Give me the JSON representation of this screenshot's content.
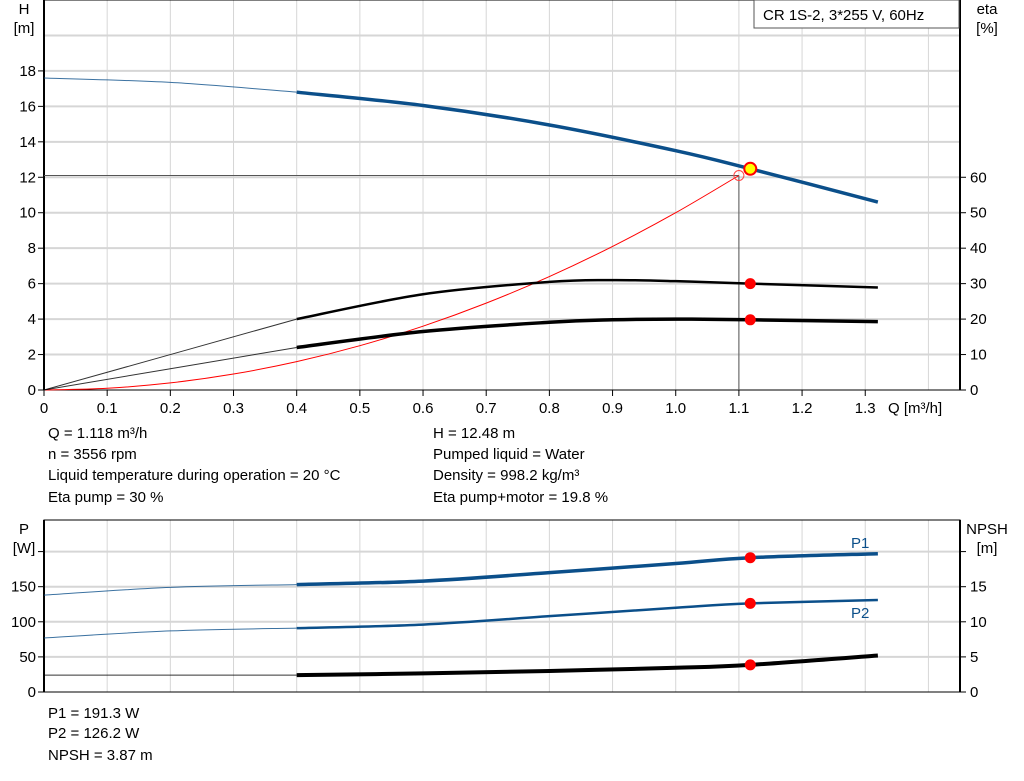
{
  "chart_data": [
    {
      "type": "line",
      "title_box": "CR 1S-2, 3*255 V, 60Hz",
      "xlabel": "Q [m³/h]",
      "xlim": [
        0,
        1.45
      ],
      "xticks": [
        0,
        0.1,
        0.2,
        0.3,
        0.4,
        0.5,
        0.6,
        0.7,
        0.8,
        0.9,
        1.0,
        1.1,
        1.2,
        1.3
      ],
      "ylabel_left": [
        "H",
        "[m]"
      ],
      "ylim_left": [
        0,
        22
      ],
      "yticks_left": [
        0,
        2,
        4,
        6,
        8,
        10,
        12,
        14,
        16,
        18
      ],
      "ylabel_right": [
        "eta",
        "[%]"
      ],
      "ylim_right": [
        0,
        110
      ],
      "yticks_right": [
        0,
        10,
        20,
        30,
        40,
        50,
        60
      ],
      "grid": true,
      "series": [
        {
          "key": "H",
          "axis": "left",
          "color": "#0b4f8a",
          "x": [
            0,
            0.2,
            0.4,
            0.6,
            0.8,
            1.0,
            1.118,
            1.32
          ],
          "y": [
            17.6,
            17.35,
            16.8,
            16.05,
            14.95,
            13.5,
            12.48,
            10.6
          ]
        },
        {
          "key": "eta_pump",
          "axis": "right",
          "color": "#000000",
          "x": [
            0,
            0.4,
            0.6,
            0.8,
            0.9,
            1.0,
            1.118,
            1.32
          ],
          "y": [
            0,
            20,
            27,
            30.5,
            31,
            30.7,
            30,
            28.9
          ]
        },
        {
          "key": "eta_pump_motor",
          "axis": "right",
          "color": "#000000",
          "x": [
            0,
            0.4,
            0.6,
            0.8,
            0.9,
            1.0,
            1.118,
            1.32
          ],
          "y": [
            0,
            12,
            16.5,
            19.1,
            19.8,
            20,
            19.8,
            19.3
          ]
        },
        {
          "key": "system_curve",
          "axis": "left",
          "color": "#ff0000",
          "x": [
            0,
            0.1,
            0.2,
            0.3,
            0.4,
            0.5,
            0.6,
            0.7,
            0.8,
            0.9,
            1.0,
            1.1
          ],
          "y": [
            0,
            0.1,
            0.4,
            0.9,
            1.6,
            2.5,
            3.6,
            4.9,
            6.4,
            8.1,
            10,
            12.1
          ]
        }
      ],
      "duty_point": {
        "Q": 1.118,
        "H": 12.48,
        "eta_pump": 30,
        "eta_pump_motor": 19.8
      },
      "system_point": {
        "Q": 1.1,
        "H": 12.1
      }
    },
    {
      "type": "line",
      "xlim": [
        0,
        1.45
      ],
      "ylabel_left": [
        "P",
        "[W]"
      ],
      "ylim_left": [
        0,
        245
      ],
      "yticks_left": [
        0,
        50,
        100,
        150,
        200
      ],
      "ytick_labels_left": [
        "0",
        "50",
        "100",
        "150",
        ""
      ],
      "ylabel_right": [
        "NPSH",
        "[m]"
      ],
      "ylim_right": [
        0,
        24.5
      ],
      "yticks_right": [
        0,
        5,
        10,
        15,
        20
      ],
      "ytick_labels_right": [
        "0",
        "5",
        "10",
        "15",
        ""
      ],
      "grid": true,
      "series": [
        {
          "name": "P1",
          "axis": "left",
          "color": "#0b4f8a",
          "x": [
            0,
            0.2,
            0.4,
            0.6,
            0.8,
            1.0,
            1.118,
            1.32
          ],
          "y": [
            138,
            149,
            153,
            158,
            170,
            183,
            191.3,
            197
          ]
        },
        {
          "name": "P2",
          "axis": "left",
          "color": "#0b4f8a",
          "x": [
            0,
            0.2,
            0.4,
            0.6,
            0.8,
            1.0,
            1.118,
            1.32
          ],
          "y": [
            77,
            87,
            91,
            96,
            108,
            120,
            126.2,
            131
          ]
        },
        {
          "key": "NPSH",
          "axis": "right",
          "color": "#000000",
          "x": [
            0,
            0.4,
            0.6,
            0.8,
            1.0,
            1.118,
            1.32
          ],
          "y": [
            2.4,
            2.4,
            2.65,
            3.0,
            3.45,
            3.87,
            5.2
          ]
        }
      ],
      "duty_point": {
        "Q": 1.118,
        "P1": 191.3,
        "P2": 126.2,
        "NPSH": 3.87
      }
    }
  ],
  "info": {
    "left": [
      "Q = 1.118 m³/h",
      "n = 3556 rpm",
      "Liquid temperature during operation = 20 °C",
      "Eta pump = 30 %"
    ],
    "right": [
      "H = 12.48 m",
      "Pumped liquid = Water",
      "Density = 998.2 kg/m³",
      "Eta pump+motor = 19.8 %"
    ],
    "bottom": [
      "P1 = 191.3 W",
      "P2 = 126.2 W",
      "NPSH = 3.87 m"
    ]
  }
}
